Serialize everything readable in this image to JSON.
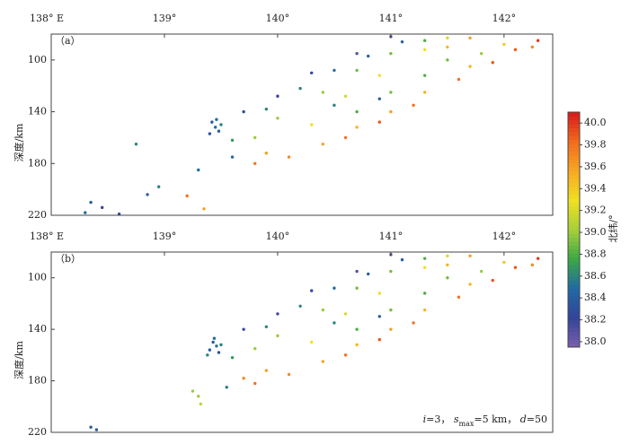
{
  "chart_data": [
    {
      "type": "scatter",
      "panel_label": "（a）",
      "ylabel": "深度/km",
      "xlim": [
        138,
        142.43
      ],
      "ylim": [
        80,
        220
      ],
      "xticks": [
        {
          "value": 138,
          "label": "138° E"
        },
        {
          "value": 139,
          "label": "139°"
        },
        {
          "value": 140,
          "label": "140°"
        },
        {
          "value": 141,
          "label": "141°"
        },
        {
          "value": 142,
          "label": "142°"
        }
      ],
      "yticks": [
        100,
        140,
        180,
        220
      ],
      "x": [
        139.42,
        139.45,
        139.48,
        139.4,
        139.46,
        139.5,
        138.75,
        138.35,
        138.3,
        138.45,
        138.6,
        138.85,
        139.2,
        139.35,
        138.95,
        141.0,
        140.7,
        140.3,
        140.0,
        139.7,
        139.6,
        139.3,
        141.1,
        140.8,
        140.5,
        140.2,
        139.9,
        139.6,
        141.3,
        141.0,
        140.7,
        140.4,
        140.0,
        139.8,
        141.5,
        141.3,
        140.9,
        140.6,
        140.3,
        141.7,
        141.5,
        141.5,
        141.3,
        141.0,
        140.7,
        140.5,
        141.8,
        140.9,
        142.0,
        141.7,
        141.3,
        141.0,
        140.7,
        140.4,
        140.1,
        139.8,
        142.3,
        142.1,
        141.9,
        141.6,
        141.2,
        140.9,
        140.6,
        142.25,
        139.9
      ],
      "y": [
        148,
        152,
        155,
        157,
        146,
        150,
        165,
        210,
        218,
        214,
        219,
        204,
        205,
        215,
        198,
        82,
        95,
        110,
        128,
        140,
        175,
        185,
        86,
        97,
        108,
        122,
        138,
        162,
        85,
        95,
        108,
        125,
        145,
        160,
        83,
        92,
        112,
        128,
        150,
        83,
        90,
        100,
        112,
        125,
        140,
        135,
        95,
        130,
        88,
        105,
        125,
        140,
        152,
        165,
        175,
        180,
        85,
        92,
        102,
        115,
        135,
        148,
        160,
        90,
        172
      ],
      "c": [
        38.4,
        38.5,
        38.4,
        38.3,
        38.5,
        38.6,
        38.6,
        38.4,
        38.5,
        38.2,
        38.3,
        38.4,
        39.8,
        39.6,
        38.6,
        38.1,
        38.1,
        38.2,
        38.2,
        38.3,
        38.5,
        38.5,
        38.4,
        38.4,
        38.5,
        38.6,
        38.6,
        38.7,
        38.8,
        38.9,
        38.9,
        39.0,
        39.0,
        39.0,
        39.2,
        39.3,
        39.3,
        39.2,
        39.3,
        39.6,
        39.5,
        38.9,
        38.8,
        38.9,
        38.8,
        38.6,
        39.0,
        38.4,
        39.4,
        39.5,
        39.5,
        39.6,
        39.5,
        39.6,
        39.7,
        39.8,
        40.0,
        39.9,
        39.9,
        39.8,
        39.8,
        39.9,
        39.8,
        39.7,
        39.6
      ]
    },
    {
      "type": "scatter",
      "panel_label": "（b）",
      "ylabel": "深度/km",
      "xlim": [
        138,
        142.43
      ],
      "ylim": [
        80,
        220
      ],
      "xticks": [
        {
          "value": 138,
          "label": "138° E"
        },
        {
          "value": 139,
          "label": "139°"
        },
        {
          "value": 140,
          "label": "140°"
        },
        {
          "value": 141,
          "label": "141°"
        },
        {
          "value": 142,
          "label": "142°"
        }
      ],
      "yticks": [
        100,
        140,
        180,
        220
      ],
      "annotation": [
        "i",
        "=3，  ",
        "s",
        "max",
        "=5 km，  ",
        "d",
        "=50"
      ],
      "x": [
        139.43,
        139.46,
        139.4,
        139.48,
        139.44,
        139.5,
        139.38,
        138.35,
        138.4,
        139.3,
        139.32,
        139.55,
        139.25,
        141.0,
        140.7,
        140.3,
        140.0,
        139.7,
        141.1,
        140.8,
        140.5,
        140.2,
        139.9,
        139.6,
        141.3,
        141.0,
        140.7,
        140.4,
        140.0,
        139.8,
        141.5,
        141.3,
        140.9,
        140.6,
        140.3,
        141.7,
        141.5,
        141.5,
        141.3,
        141.0,
        140.7,
        140.5,
        141.8,
        140.9,
        142.0,
        141.7,
        141.3,
        141.0,
        140.7,
        140.4,
        140.1,
        139.8,
        142.3,
        142.1,
        141.9,
        141.6,
        141.2,
        140.9,
        140.6,
        142.25,
        139.9,
        139.7
      ],
      "y": [
        150,
        153,
        156,
        158,
        147,
        152,
        160,
        216,
        218,
        192,
        198,
        185,
        188,
        82,
        95,
        110,
        128,
        140,
        86,
        97,
        108,
        122,
        138,
        162,
        85,
        95,
        108,
        125,
        145,
        155,
        83,
        92,
        112,
        128,
        150,
        83,
        90,
        100,
        112,
        125,
        140,
        135,
        95,
        130,
        88,
        105,
        125,
        140,
        152,
        165,
        175,
        182,
        85,
        92,
        102,
        115,
        135,
        148,
        160,
        90,
        172,
        178
      ],
      "c": [
        38.4,
        38.5,
        38.4,
        38.3,
        38.5,
        38.6,
        38.6,
        38.4,
        38.4,
        39.0,
        39.1,
        38.6,
        39.0,
        38.1,
        38.1,
        38.2,
        38.2,
        38.3,
        38.4,
        38.4,
        38.5,
        38.6,
        38.6,
        38.7,
        38.8,
        38.9,
        38.9,
        39.0,
        39.0,
        39.0,
        39.2,
        39.3,
        39.3,
        39.2,
        39.3,
        39.6,
        39.5,
        38.9,
        38.8,
        38.9,
        38.8,
        38.6,
        39.0,
        38.4,
        39.4,
        39.5,
        39.5,
        39.6,
        39.5,
        39.6,
        39.7,
        39.8,
        40.0,
        39.9,
        39.9,
        39.8,
        39.8,
        39.9,
        39.8,
        39.7,
        39.6,
        39.7
      ]
    }
  ],
  "colorbar": {
    "label": "北纬/°",
    "clim": [
      37.95,
      40.1
    ],
    "ticks": [
      {
        "value": 38,
        "label": "38.0"
      },
      38.2,
      38.4,
      38.6,
      38.8,
      {
        "value": 39,
        "label": "39.0"
      },
      39.2,
      39.4,
      39.6,
      39.8,
      {
        "value": 40,
        "label": "40.0"
      }
    ],
    "colormap": [
      "#7b5fad",
      "#34449a",
      "#1f6aa5",
      "#3aa845",
      "#a6cf3a",
      "#f0e020",
      "#f7a823",
      "#f26b1d",
      "#d7191c"
    ]
  }
}
